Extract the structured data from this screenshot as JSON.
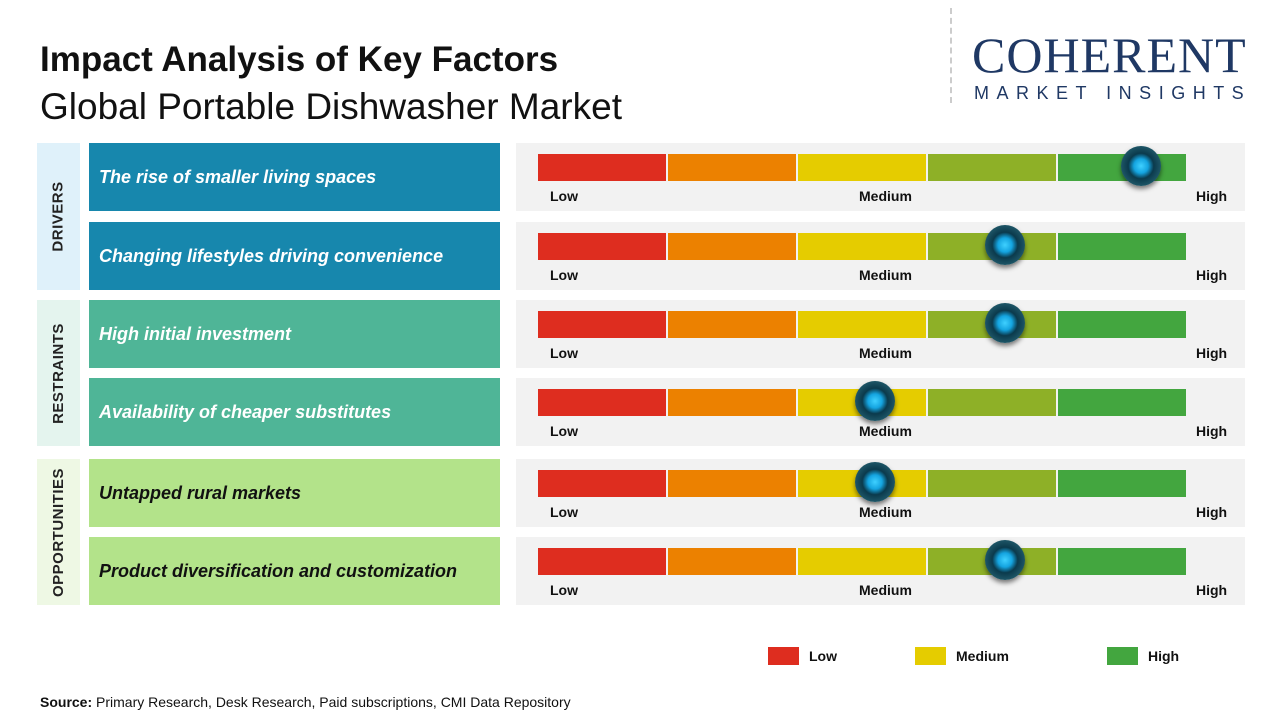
{
  "title": "Impact Analysis of Key Factors",
  "subtitle": "Global Portable Dishwasher Market",
  "logo": {
    "line1": "COHERENT",
    "line2": "MARKET INSIGHTS"
  },
  "chart_data": {
    "type": "gauge-table",
    "scale_labels": [
      "Low",
      "Medium",
      "High"
    ],
    "segment_colors": [
      "#de2d1f",
      "#ec8100",
      "#e5cc00",
      "#8eb027",
      "#43a63f"
    ],
    "groups": [
      {
        "name": "DRIVERS",
        "label_bg": "#dff1fa",
        "row_color": "#1787ad",
        "text_color": "#ffffff",
        "factors": [
          {
            "label": "The rise of smaller living spaces",
            "impact": 0.93
          },
          {
            "label": "Changing lifestyles driving convenience",
            "impact": 0.72
          }
        ]
      },
      {
        "name": "RESTRAINTS",
        "label_bg": "#e4f4ee",
        "row_color": "#4fb597",
        "text_color": "#ffffff",
        "factors": [
          {
            "label": "High initial investment",
            "impact": 0.72
          },
          {
            "label": "Availability of cheaper substitutes",
            "impact": 0.52
          }
        ]
      },
      {
        "name": "OPPORTUNITIES",
        "label_bg": "#eef8e4",
        "row_color": "#b3e38a",
        "text_color": "#111111",
        "factors": [
          {
            "label": "Untapped rural markets",
            "impact": 0.52
          },
          {
            "label": "Product diversification and customization",
            "impact": 0.72
          }
        ]
      }
    ],
    "legend": [
      {
        "label": "Low",
        "color": "#de2d1f"
      },
      {
        "label": "Medium",
        "color": "#e5cc00"
      },
      {
        "label": "High",
        "color": "#43a63f"
      }
    ]
  },
  "source": {
    "label": "Source:",
    "text": " Primary Research, Desk Research, Paid subscriptions, CMI Data Repository"
  }
}
